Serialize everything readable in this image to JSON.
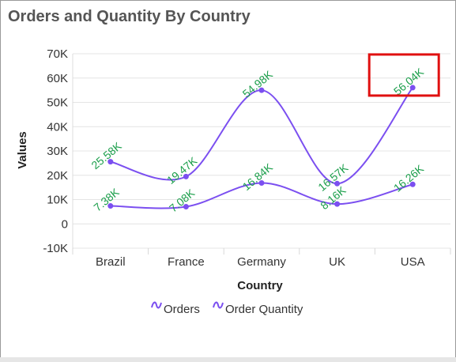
{
  "chart_data": {
    "type": "line",
    "title": "Orders and Quantity By Country",
    "xlabel": "Country",
    "ylabel": "Values",
    "categories": [
      "Brazil",
      "France",
      "Germany",
      "UK",
      "USA"
    ],
    "ylim": [
      -10000,
      70000
    ],
    "yticks": [
      -10000,
      0,
      10000,
      20000,
      30000,
      40000,
      50000,
      60000,
      70000
    ],
    "ytick_labels": [
      "-10K",
      "0",
      "10K",
      "20K",
      "30K",
      "40K",
      "50K",
      "60K",
      "70K"
    ],
    "series": [
      {
        "name": "Orders",
        "values": [
          25580,
          19470,
          54980,
          16570,
          56040
        ],
        "labels": [
          "25.58K",
          "19.47K",
          "54.98K",
          "16.57K",
          "56.04K"
        ],
        "color": "#7b4ff0"
      },
      {
        "name": "Order Quantity",
        "values": [
          7380,
          7080,
          16840,
          8160,
          16260
        ],
        "labels": [
          "7.38K",
          "7.08K",
          "16.84K",
          "8.16K",
          "16.26K"
        ],
        "color": "#7b4ff0"
      }
    ],
    "label_color": "#1a9e4a",
    "highlight": {
      "series": 0,
      "category": "USA",
      "color": "#e01010"
    },
    "grid": true,
    "legend_position": "bottom",
    "smooth": true
  }
}
